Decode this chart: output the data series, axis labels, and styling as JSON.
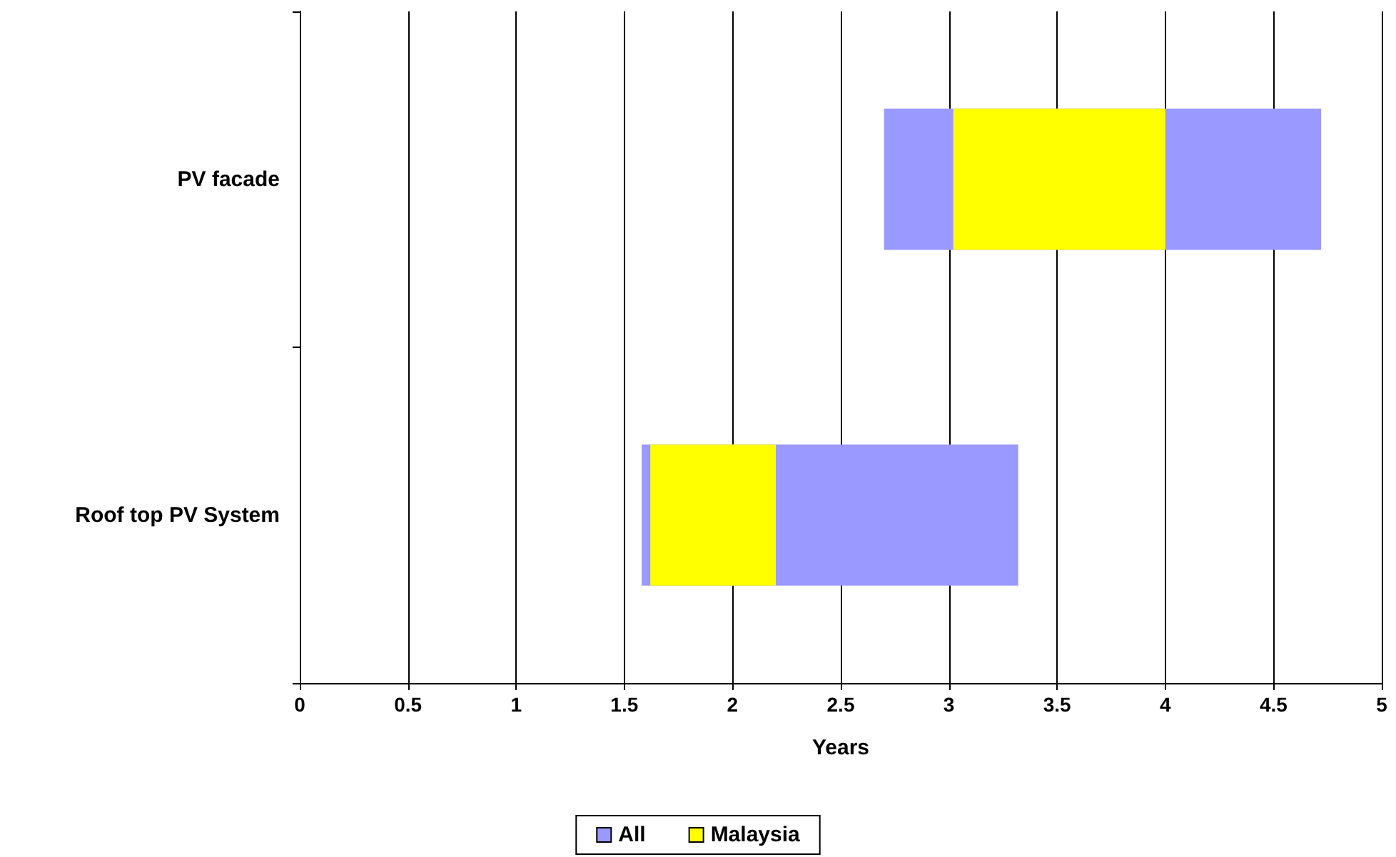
{
  "chart_data": {
    "type": "bar",
    "orientation": "horizontal",
    "xlabel": "Years",
    "categories": [
      "PV facade",
      "Roof top PV System"
    ],
    "series": [
      {
        "name": "All",
        "color": "#9999ff",
        "base": [
          2.7,
          1.58
        ],
        "values": [
          2.02,
          1.74
        ]
      },
      {
        "name": "Malaysia",
        "color": "#ffff00",
        "base": [
          3.02,
          1.62
        ],
        "values": [
          0.98,
          0.58
        ]
      }
    ],
    "xlim": [
      0,
      5
    ],
    "xticks": [
      0,
      0.5,
      1,
      1.5,
      2,
      2.5,
      3,
      3.5,
      4,
      4.5,
      5
    ],
    "grid": "x",
    "legend": "bottom"
  }
}
